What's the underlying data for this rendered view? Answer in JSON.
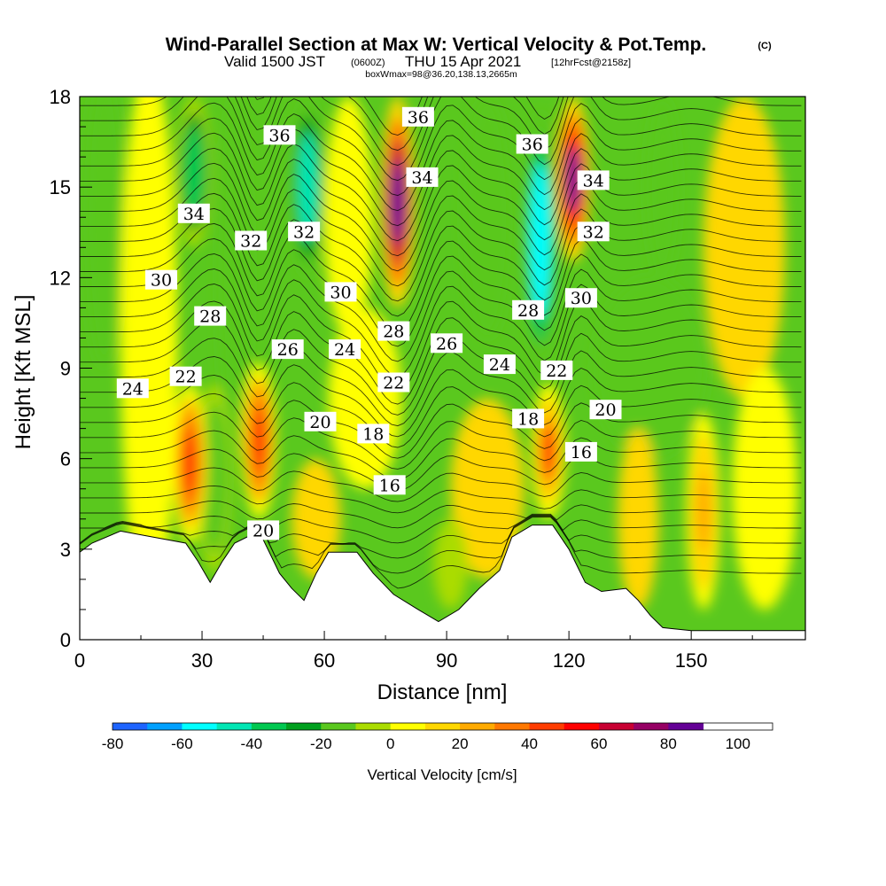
{
  "title": "Wind-Parallel Section at Max W: Vertical Velocity & Pot.Temp.",
  "title_mark": "(C)",
  "subtitle": {
    "valid": "Valid 1500 JST",
    "utc": "(0600Z)",
    "date": "THU 15 Apr 2021",
    "fcst": "[12hrFcst@2158z]"
  },
  "box_info": "boxWmax=98@36.20,138.13,2665m",
  "chart_data": {
    "type": "heatmap",
    "xlabel": "Distance [nm]",
    "ylabel": "Height [Kft MSL]",
    "xlim": [
      0,
      178
    ],
    "ylim": [
      0,
      18
    ],
    "x_ticks": [
      0,
      30,
      60,
      90,
      120,
      150
    ],
    "y_ticks": [
      0,
      3,
      6,
      9,
      12,
      15,
      18
    ],
    "colorbar": {
      "label": "Vertical Velocity [cm/s]",
      "min": -80,
      "max": 110,
      "step": 10,
      "tick_labels": [
        -80,
        -60,
        -40,
        -20,
        0,
        20,
        40,
        60,
        80,
        100
      ],
      "colors": [
        "#0000ff",
        "#1e64ff",
        "#00a0ff",
        "#00ffff",
        "#00e6b4",
        "#00c850",
        "#00a01e",
        "#5ac81e",
        "#aadc00",
        "#ffff00",
        "#ffd700",
        "#ffaa00",
        "#ff7800",
        "#ff3c00",
        "#ff0000",
        "#c80032",
        "#960064",
        "#640096"
      ]
    },
    "w_updraft_columns": [
      {
        "x": 27,
        "z_range": [
          3.2,
          8.5
        ],
        "w_max": 50
      },
      {
        "x": 44,
        "z_range": [
          4.0,
          9.2
        ],
        "w_max": 55
      },
      {
        "x": 78,
        "z_range": [
          11.0,
          18
        ],
        "w_max": 98
      },
      {
        "x": 115,
        "z_range": [
          4.0,
          8.5
        ],
        "w_max": 45
      },
      {
        "x": 121,
        "z_range": [
          12.5,
          18
        ],
        "w_max": 90
      },
      {
        "x": 153,
        "z_range": [
          1.0,
          7.5
        ],
        "w_max": 30
      }
    ],
    "w_downdraft_columns": [
      {
        "x": 33,
        "z_range": [
          2.2,
          8.5
        ],
        "w_min": -20
      },
      {
        "x": 28,
        "z_range": [
          13.0,
          18
        ],
        "w_min": -40
      },
      {
        "x": 56,
        "z_range": [
          12.0,
          18
        ],
        "w_min": -50
      },
      {
        "x": 91,
        "z_range": [
          1.0,
          4.0
        ],
        "w_min": -10
      },
      {
        "x": 113,
        "z_range": [
          9.0,
          17.5
        ],
        "w_min": -65
      }
    ],
    "theta_contours_label_values": [
      16,
      18,
      20,
      22,
      24,
      26,
      28,
      30,
      32,
      34,
      36
    ],
    "contour_labels": [
      {
        "v": "36",
        "x": 49,
        "z": 16.7
      },
      {
        "v": "36",
        "x": 83,
        "z": 17.3
      },
      {
        "v": "36",
        "x": 111,
        "z": 16.4
      },
      {
        "v": "34",
        "x": 28,
        "z": 14.1
      },
      {
        "v": "34",
        "x": 84,
        "z": 15.3
      },
      {
        "v": "34",
        "x": 126,
        "z": 15.2
      },
      {
        "v": "32",
        "x": 42,
        "z": 13.2
      },
      {
        "v": "32",
        "x": 55,
        "z": 13.5
      },
      {
        "v": "32",
        "x": 126,
        "z": 13.5
      },
      {
        "v": "30",
        "x": 20,
        "z": 11.9
      },
      {
        "v": "30",
        "x": 64,
        "z": 11.5
      },
      {
        "v": "30",
        "x": 123,
        "z": 11.3
      },
      {
        "v": "28",
        "x": 32,
        "z": 10.7
      },
      {
        "v": "28",
        "x": 77,
        "z": 10.2
      },
      {
        "v": "28",
        "x": 110,
        "z": 10.9
      },
      {
        "v": "26",
        "x": 51,
        "z": 9.6
      },
      {
        "v": "26",
        "x": 90,
        "z": 9.8
      },
      {
        "v": "24",
        "x": 13,
        "z": 8.3
      },
      {
        "v": "24",
        "x": 65,
        "z": 9.6
      },
      {
        "v": "24",
        "x": 103,
        "z": 9.1
      },
      {
        "v": "22",
        "x": 26,
        "z": 8.7
      },
      {
        "v": "22",
        "x": 77,
        "z": 8.5
      },
      {
        "v": "22",
        "x": 117,
        "z": 8.9
      },
      {
        "v": "20",
        "x": 59,
        "z": 7.2
      },
      {
        "v": "20",
        "x": 129,
        "z": 7.6
      },
      {
        "v": "20",
        "x": 45,
        "z": 3.6
      },
      {
        "v": "18",
        "x": 72,
        "z": 6.8
      },
      {
        "v": "18",
        "x": 110,
        "z": 7.3
      },
      {
        "v": "16",
        "x": 76,
        "z": 5.1
      },
      {
        "v": "16",
        "x": 123,
        "z": 6.2
      }
    ],
    "terrain_heights_kft": [
      {
        "x": 0,
        "z": 2.9
      },
      {
        "x": 3,
        "z": 3.2
      },
      {
        "x": 10,
        "z": 3.6
      },
      {
        "x": 26,
        "z": 3.2
      },
      {
        "x": 29,
        "z": 2.6
      },
      {
        "x": 32,
        "z": 1.9
      },
      {
        "x": 35,
        "z": 2.6
      },
      {
        "x": 38,
        "z": 3.2
      },
      {
        "x": 44,
        "z": 3.6
      },
      {
        "x": 49,
        "z": 2.2
      },
      {
        "x": 52,
        "z": 1.7
      },
      {
        "x": 55,
        "z": 1.3
      },
      {
        "x": 58,
        "z": 2.2
      },
      {
        "x": 61,
        "z": 2.9
      },
      {
        "x": 68,
        "z": 2.9
      },
      {
        "x": 72,
        "z": 2.2
      },
      {
        "x": 77,
        "z": 1.5
      },
      {
        "x": 83,
        "z": 1.0
      },
      {
        "x": 88,
        "z": 0.6
      },
      {
        "x": 93,
        "z": 1.0
      },
      {
        "x": 98,
        "z": 1.7
      },
      {
        "x": 103,
        "z": 2.3
      },
      {
        "x": 106,
        "z": 3.4
      },
      {
        "x": 111,
        "z": 3.8
      },
      {
        "x": 116,
        "z": 3.8
      },
      {
        "x": 120,
        "z": 3.0
      },
      {
        "x": 124,
        "z": 1.9
      },
      {
        "x": 128,
        "z": 1.6
      },
      {
        "x": 134,
        "z": 1.7
      },
      {
        "x": 137,
        "z": 1.3
      },
      {
        "x": 140,
        "z": 0.8
      },
      {
        "x": 143,
        "z": 0.4
      },
      {
        "x": 150,
        "z": 0.3
      },
      {
        "x": 178,
        "z": 0.3
      }
    ]
  }
}
